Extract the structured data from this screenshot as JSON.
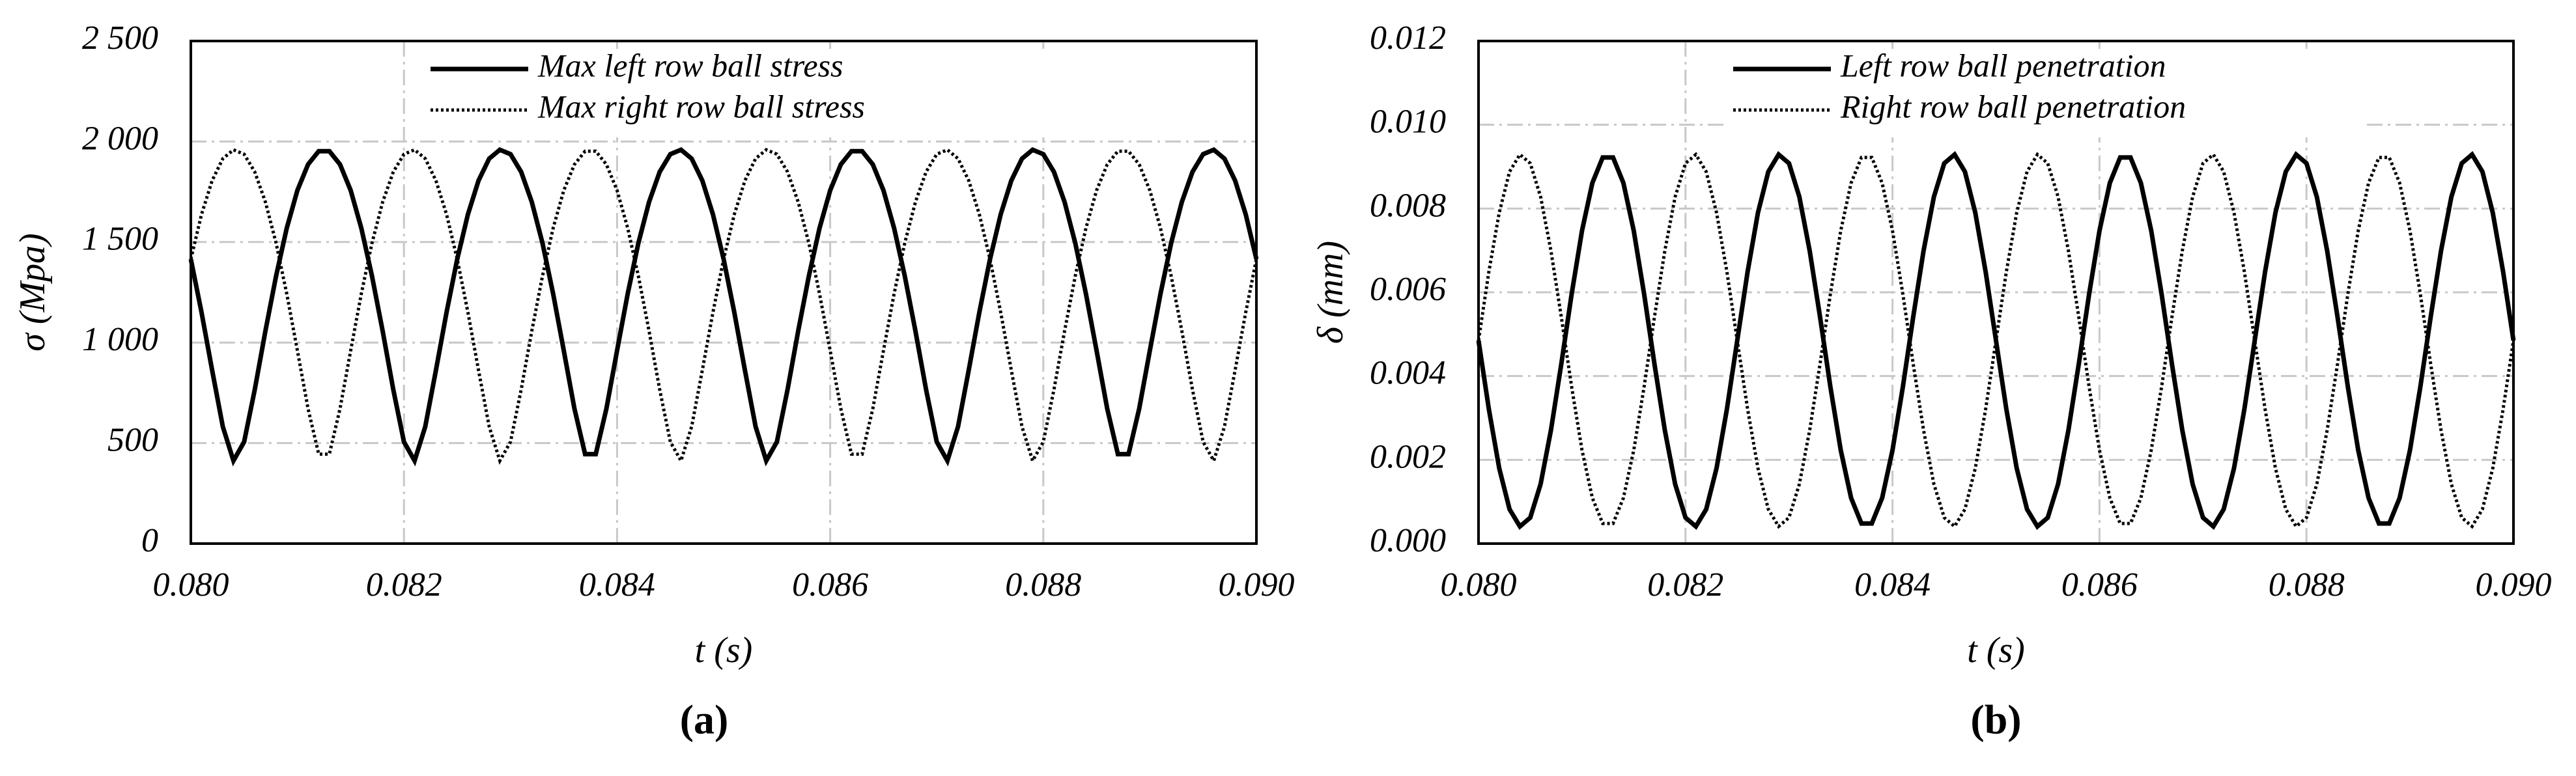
{
  "chart_data": [
    {
      "type": "line",
      "label": "(a)",
      "xlabel": "t (s)",
      "ylabel": "σ (Mpa)",
      "xlim": [
        0.08,
        0.09
      ],
      "ylim": [
        0,
        2500
      ],
      "xticks": [
        {
          "value": 0.08,
          "label": "0.080"
        },
        {
          "value": 0.082,
          "label": "0.082"
        },
        {
          "value": 0.084,
          "label": "0.084"
        },
        {
          "value": 0.086,
          "label": "0.086"
        },
        {
          "value": 0.088,
          "label": "0.088"
        },
        {
          "value": 0.09,
          "label": "0.090"
        }
      ],
      "yticks": [
        0,
        500,
        {
          "value": 1000,
          "label": "1 000"
        },
        {
          "value": 1500,
          "label": "1 500"
        },
        {
          "value": 2000,
          "label": "2 000"
        },
        {
          "value": 2500,
          "label": "2 500"
        }
      ],
      "grid": true,
      "legend": "top",
      "x": [
        0.08,
        0.0801,
        0.0802,
        0.0803,
        0.0804,
        0.0805,
        0.0806,
        0.0807,
        0.0808,
        0.0809,
        0.081,
        0.0811,
        0.0812,
        0.0813,
        0.0814,
        0.0815,
        0.0816,
        0.0817,
        0.0818,
        0.0819,
        0.082,
        0.0821,
        0.0822,
        0.0823,
        0.0824,
        0.0825,
        0.0826,
        0.0827,
        0.0828,
        0.0829,
        0.083,
        0.0831,
        0.0832,
        0.0833,
        0.0834,
        0.0835,
        0.0836,
        0.0837,
        0.0838,
        0.0839,
        0.084,
        0.0841,
        0.0842,
        0.0843,
        0.0844,
        0.0845,
        0.0846,
        0.0847,
        0.0848,
        0.0849,
        0.085,
        0.0851,
        0.0852,
        0.0853,
        0.0854,
        0.0855,
        0.0856,
        0.0857,
        0.0858,
        0.0859,
        0.086,
        0.0861,
        0.0862,
        0.0863,
        0.0864,
        0.0865,
        0.0866,
        0.0867,
        0.0868,
        0.0869,
        0.087,
        0.0871,
        0.0872,
        0.0873,
        0.0874,
        0.0875,
        0.0876,
        0.0877,
        0.0878,
        0.0879,
        0.088,
        0.0881,
        0.0882,
        0.0883,
        0.0884,
        0.0885,
        0.0886,
        0.0887,
        0.0888,
        0.0889,
        0.089,
        0.0891,
        0.0892,
        0.0893,
        0.0894,
        0.0895,
        0.0896,
        0.0897,
        0.0898,
        0.0899,
        0.09
      ],
      "series": [
        {
          "name": "Max left row ball stress",
          "color": "#000000",
          "style": "solid",
          "values": [
            1415,
            1151,
            862,
            582,
            412,
            506,
            766,
            1058,
            1331,
            1569,
            1757,
            1886,
            1952,
            1952,
            1886,
            1757,
            1569,
            1331,
            1058,
            766,
            506,
            412,
            582,
            862,
            1151,
            1415,
            1637,
            1806,
            1915,
            1959,
            1937,
            1849,
            1699,
            1495,
            1243,
            960,
            671,
            445,
            445,
            671,
            960,
            1243,
            1495,
            1699,
            1849,
            1937,
            1959,
            1915,
            1806,
            1637,
            1415,
            1151,
            862,
            582,
            412,
            506,
            766,
            1058,
            1331,
            1569,
            1757,
            1886,
            1952,
            1952,
            1886,
            1757,
            1569,
            1331,
            1058,
            766,
            506,
            412,
            582,
            862,
            1151,
            1415,
            1637,
            1806,
            1915,
            1959,
            1937,
            1849,
            1699,
            1495,
            1243,
            960,
            671,
            445,
            445,
            671,
            960,
            1243,
            1495,
            1699,
            1849,
            1937,
            1959,
            1915,
            1806,
            1637,
            1415
          ]
        },
        {
          "name": "Max right row ball stress",
          "color": "#000000",
          "style": "dotted",
          "values": [
            1415,
            1637,
            1806,
            1915,
            1959,
            1937,
            1849,
            1699,
            1495,
            1243,
            960,
            671,
            445,
            445,
            671,
            960,
            1243,
            1495,
            1699,
            1849,
            1937,
            1959,
            1915,
            1806,
            1637,
            1415,
            1151,
            862,
            582,
            412,
            506,
            766,
            1058,
            1331,
            1569,
            1757,
            1886,
            1952,
            1952,
            1886,
            1757,
            1569,
            1331,
            1058,
            766,
            506,
            412,
            582,
            862,
            1151,
            1415,
            1637,
            1806,
            1915,
            1959,
            1937,
            1849,
            1699,
            1495,
            1243,
            960,
            671,
            445,
            445,
            671,
            960,
            1243,
            1495,
            1699,
            1849,
            1937,
            1959,
            1915,
            1806,
            1637,
            1415,
            1151,
            862,
            582,
            412,
            506,
            766,
            1058,
            1331,
            1569,
            1757,
            1886,
            1952,
            1952,
            1886,
            1757,
            1569,
            1331,
            1058,
            766,
            506,
            412,
            582,
            862,
            1151,
            1415
          ]
        }
      ]
    },
    {
      "type": "line",
      "label": "(b)",
      "xlabel": "t (s)",
      "ylabel": "δ (mm)",
      "xlim": [
        0.08,
        0.09
      ],
      "ylim": [
        0,
        0.012
      ],
      "xticks": [
        {
          "value": 0.08,
          "label": "0.080"
        },
        {
          "value": 0.082,
          "label": "0.082"
        },
        {
          "value": 0.084,
          "label": "0.084"
        },
        {
          "value": 0.086,
          "label": "0.086"
        },
        {
          "value": 0.088,
          "label": "0.088"
        },
        {
          "value": 0.09,
          "label": "0.090"
        }
      ],
      "yticks": [
        {
          "value": 0,
          "label": "0.000"
        },
        {
          "value": 0.002,
          "label": "0.002"
        },
        {
          "value": 0.004,
          "label": "0.004"
        },
        {
          "value": 0.006,
          "label": "0.006"
        },
        {
          "value": 0.008,
          "label": "0.008"
        },
        {
          "value": 0.01,
          "label": "0.010"
        },
        {
          "value": 0.012,
          "label": "0.012"
        }
      ],
      "grid": true,
      "legend": "top",
      "x": [
        0.08,
        0.0801,
        0.0802,
        0.0803,
        0.0804,
        0.0805,
        0.0806,
        0.0807,
        0.0808,
        0.0809,
        0.081,
        0.0811,
        0.0812,
        0.0813,
        0.0814,
        0.0815,
        0.0816,
        0.0817,
        0.0818,
        0.0819,
        0.082,
        0.0821,
        0.0822,
        0.0823,
        0.0824,
        0.0825,
        0.0826,
        0.0827,
        0.0828,
        0.0829,
        0.083,
        0.0831,
        0.0832,
        0.0833,
        0.0834,
        0.0835,
        0.0836,
        0.0837,
        0.0838,
        0.0839,
        0.084,
        0.0841,
        0.0842,
        0.0843,
        0.0844,
        0.0845,
        0.0846,
        0.0847,
        0.0848,
        0.0849,
        0.085,
        0.0851,
        0.0852,
        0.0853,
        0.0854,
        0.0855,
        0.0856,
        0.0857,
        0.0858,
        0.0859,
        0.086,
        0.0861,
        0.0862,
        0.0863,
        0.0864,
        0.0865,
        0.0866,
        0.0867,
        0.0868,
        0.0869,
        0.087,
        0.0871,
        0.0872,
        0.0873,
        0.0874,
        0.0875,
        0.0876,
        0.0877,
        0.0878,
        0.0879,
        0.088,
        0.0881,
        0.0882,
        0.0883,
        0.0884,
        0.0885,
        0.0886,
        0.0887,
        0.0888,
        0.0889,
        0.089,
        0.0891,
        0.0892,
        0.0893,
        0.0894,
        0.0895,
        0.0896,
        0.0897,
        0.0898,
        0.0899,
        0.09
      ],
      "series": [
        {
          "name": "Left row ball penetration",
          "color": "#000000",
          "style": "solid",
          "values": [
            0.00485,
            0.00321,
            0.0018,
            0.00082,
            0.00041,
            0.00062,
            0.00142,
            0.00271,
            0.00429,
            0.00596,
            0.00747,
            0.00861,
            0.00922,
            0.00922,
            0.00861,
            0.00747,
            0.00596,
            0.00429,
            0.00271,
            0.00142,
            0.00062,
            0.00041,
            0.00082,
            0.0018,
            0.00321,
            0.00485,
            0.00649,
            0.0079,
            0.00888,
            0.00929,
            0.00908,
            0.00828,
            0.00699,
            0.00541,
            0.00374,
            0.00223,
            0.00109,
            0.00048,
            0.00048,
            0.00109,
            0.00223,
            0.00374,
            0.00541,
            0.00699,
            0.00828,
            0.00908,
            0.00929,
            0.00888,
            0.0079,
            0.00649,
            0.00485,
            0.00321,
            0.0018,
            0.00082,
            0.00041,
            0.00062,
            0.00142,
            0.00271,
            0.00429,
            0.00596,
            0.00747,
            0.00861,
            0.00922,
            0.00922,
            0.00861,
            0.00747,
            0.00596,
            0.00429,
            0.00271,
            0.00142,
            0.00062,
            0.00041,
            0.00082,
            0.0018,
            0.00321,
            0.00485,
            0.00649,
            0.0079,
            0.00888,
            0.00929,
            0.00908,
            0.00828,
            0.00699,
            0.00541,
            0.00374,
            0.00223,
            0.00109,
            0.00048,
            0.00048,
            0.00109,
            0.00223,
            0.00374,
            0.00541,
            0.00699,
            0.00828,
            0.00908,
            0.00929,
            0.00888,
            0.0079,
            0.00649,
            0.00485
          ]
        },
        {
          "name": "Right row ball penetration",
          "color": "#000000",
          "style": "dotted",
          "values": [
            0.00485,
            0.00649,
            0.0079,
            0.00888,
            0.00929,
            0.00908,
            0.00828,
            0.00699,
            0.00541,
            0.00374,
            0.00223,
            0.00109,
            0.00048,
            0.00048,
            0.00109,
            0.00223,
            0.00374,
            0.00541,
            0.00699,
            0.00828,
            0.00908,
            0.00929,
            0.00888,
            0.0079,
            0.00649,
            0.00485,
            0.00321,
            0.0018,
            0.00082,
            0.00041,
            0.00062,
            0.00142,
            0.00271,
            0.00429,
            0.00596,
            0.00747,
            0.00861,
            0.00922,
            0.00922,
            0.00861,
            0.00747,
            0.00596,
            0.00429,
            0.00271,
            0.00142,
            0.00062,
            0.00041,
            0.00082,
            0.0018,
            0.00321,
            0.00485,
            0.00649,
            0.0079,
            0.00888,
            0.00929,
            0.00908,
            0.00828,
            0.00699,
            0.00541,
            0.00374,
            0.00223,
            0.00109,
            0.00048,
            0.00048,
            0.00109,
            0.00223,
            0.00374,
            0.00541,
            0.00699,
            0.00828,
            0.00908,
            0.00929,
            0.00888,
            0.0079,
            0.00649,
            0.00485,
            0.00321,
            0.0018,
            0.00082,
            0.00041,
            0.00062,
            0.00142,
            0.00271,
            0.00429,
            0.00596,
            0.00747,
            0.00861,
            0.00922,
            0.00922,
            0.00861,
            0.00747,
            0.00596,
            0.00429,
            0.00271,
            0.00142,
            0.00062,
            0.00041,
            0.00082,
            0.0018,
            0.00321,
            0.00485
          ]
        }
      ]
    }
  ]
}
